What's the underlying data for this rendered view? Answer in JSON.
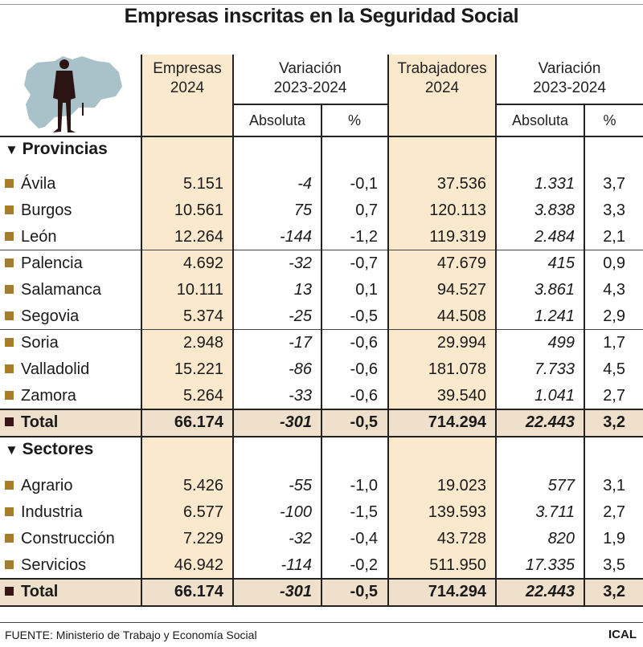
{
  "title": "Empresas inscritas en la Seguridad Social",
  "header": {
    "empresas": [
      "Empresas",
      "2024"
    ],
    "variacion1": [
      "Variación",
      "2023-2024"
    ],
    "trabajadores": [
      "Trabajadores",
      "2024"
    ],
    "variacion2": [
      "Variación",
      "2023-2024"
    ],
    "absoluta": "Absoluta",
    "pct": "%"
  },
  "colors": {
    "highlight_column": "#fbe9cd",
    "total_row": "#efe0cc",
    "bullet": "#a67c2e"
  },
  "chart_data": {
    "type": "table",
    "title": "Empresas inscritas en la Seguridad Social",
    "columns": [
      "Empresas 2024",
      "Variación 2023-2024 Absoluta",
      "Variación 2023-2024 %",
      "Trabajadores 2024",
      "Variación 2023-2024 Absoluta",
      "Variación 2023-2024 %"
    ],
    "sections": [
      {
        "name": "Provincias",
        "rows": [
          {
            "label": "Ávila",
            "values": [
              "5.151",
              "-4",
              "-0,1",
              "37.536",
              "1.331",
              "3,7"
            ]
          },
          {
            "label": "Burgos",
            "values": [
              "10.561",
              "75",
              "0,7",
              "120.113",
              "3.838",
              "3,3"
            ]
          },
          {
            "label": "León",
            "values": [
              "12.264",
              "-144",
              "-1,2",
              "119.319",
              "2.484",
              "2,1"
            ]
          },
          {
            "label": "Palencia",
            "values": [
              "4.692",
              "-32",
              "-0,7",
              "47.679",
              "415",
              "0,9"
            ]
          },
          {
            "label": "Salamanca",
            "values": [
              "10.111",
              "13",
              "0,1",
              "94.527",
              "3.861",
              "4,3"
            ]
          },
          {
            "label": "Segovia",
            "values": [
              "5.374",
              "-25",
              "-0,5",
              "44.508",
              "1.241",
              "2,9"
            ]
          },
          {
            "label": "Soria",
            "values": [
              "2.948",
              "-17",
              "-0,6",
              "29.994",
              "499",
              "1,7"
            ]
          },
          {
            "label": "Valladolid",
            "values": [
              "15.221",
              "-86",
              "-0,6",
              "181.078",
              "7.733",
              "4,5"
            ]
          },
          {
            "label": "Zamora",
            "values": [
              "5.264",
              "-33",
              "-0,6",
              "39.540",
              "1.041",
              "2,7"
            ]
          }
        ],
        "total": {
          "label": "Total",
          "values": [
            "66.174",
            "-301",
            "-0,5",
            "714.294",
            "22.443",
            "3,2"
          ]
        }
      },
      {
        "name": "Sectores",
        "rows": [
          {
            "label": "Agrario",
            "values": [
              "5.426",
              "-55",
              "-1,0",
              "19.023",
              "577",
              "3,1"
            ]
          },
          {
            "label": "Industria",
            "values": [
              "6.577",
              "-100",
              "-1,5",
              "139.593",
              "3.711",
              "2,7"
            ]
          },
          {
            "label": "Construcción",
            "values": [
              "7.229",
              "-32",
              "-0,4",
              "43.728",
              "820",
              "1,9"
            ]
          },
          {
            "label": "Servicios",
            "values": [
              "46.942",
              "-114",
              "-0,2",
              "511.950",
              "17.335",
              "3,5"
            ]
          }
        ],
        "total": {
          "label": "Total",
          "values": [
            "66.174",
            "-301",
            "-0,5",
            "714.294",
            "22.443",
            "3,2"
          ]
        }
      }
    ]
  },
  "footer": {
    "source": "FUENTE: Ministerio de Trabajo y Economía Social",
    "brand": "ICAL"
  }
}
